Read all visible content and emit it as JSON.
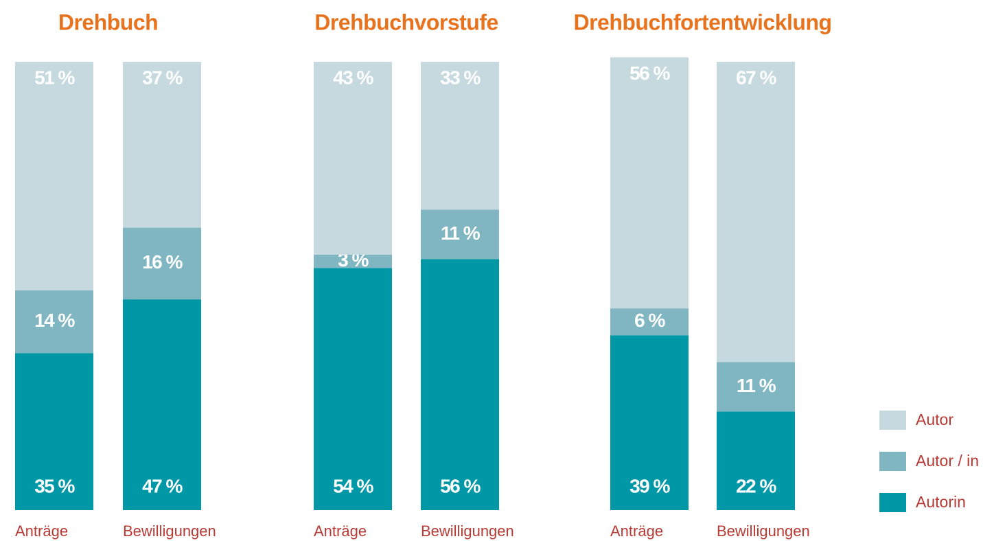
{
  "chart_data": [
    {
      "type": "stacked-bar",
      "title": "Drehbuch",
      "categories": [
        "Anträge",
        "Bewilligungen"
      ],
      "series": [
        {
          "values": [
            35,
            47
          ],
          "value_labels": [
            "35 %",
            "47 %"
          ]
        },
        {
          "values": [
            14,
            16
          ],
          "value_labels": [
            "14 %",
            "16 %"
          ]
        },
        {
          "values": [
            51,
            37
          ],
          "value_labels": [
            "51 %",
            "37 %"
          ]
        }
      ]
    },
    {
      "type": "stacked-bar",
      "title": "Drehbuchvorstufe",
      "categories": [
        "Anträge",
        "Bewilligungen"
      ],
      "series": [
        {
          "values": [
            54,
            56
          ],
          "value_labels": [
            "54 %",
            "56 %"
          ]
        },
        {
          "values": [
            3,
            11
          ],
          "value_labels": [
            "3 %",
            "11 %"
          ]
        },
        {
          "values": [
            43,
            33
          ],
          "value_labels": [
            "43 %",
            "33 %"
          ]
        }
      ]
    },
    {
      "type": "stacked-bar",
      "title": "Drehbuchfortentwicklung",
      "categories": [
        "Anträge",
        "Bewilligungen"
      ],
      "series": [
        {
          "values": [
            39,
            22
          ],
          "value_labels": [
            "39 %",
            "22 %"
          ]
        },
        {
          "values": [
            6,
            11
          ],
          "value_labels": [
            "6 %",
            "11 %"
          ]
        },
        {
          "values": [
            56,
            67
          ],
          "value_labels": [
            "56 %",
            "67 %"
          ]
        }
      ]
    }
  ],
  "legend": {
    "items": [
      {
        "name": "Autorin",
        "color": "#0098a6"
      },
      {
        "name": "Autor / in",
        "color": "#7fb6c1"
      },
      {
        "name": "Autor",
        "color": "#c5d9df"
      }
    ]
  }
}
